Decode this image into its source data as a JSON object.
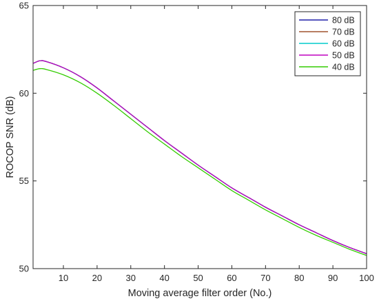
{
  "chart_data": {
    "type": "line",
    "xlabel": "Moving average filter order (No.)",
    "ylabel": "ROCOP SNR (dB)",
    "xlim": [
      1,
      100
    ],
    "ylim": [
      50,
      65
    ],
    "xticks": [
      10,
      20,
      30,
      40,
      50,
      60,
      70,
      80,
      90,
      100
    ],
    "yticks": [
      50,
      55,
      60,
      65
    ],
    "x": [
      1,
      3,
      5,
      10,
      15,
      20,
      25,
      30,
      35,
      40,
      45,
      50,
      55,
      60,
      65,
      70,
      75,
      80,
      85,
      90,
      95,
      100
    ],
    "series": [
      {
        "name": "80 dB",
        "color": "#1f1fa8",
        "values": [
          61.7,
          61.85,
          61.8,
          61.45,
          60.95,
          60.3,
          59.55,
          58.8,
          58.05,
          57.3,
          56.6,
          55.9,
          55.25,
          54.6,
          54.05,
          53.5,
          53.0,
          52.5,
          52.05,
          51.6,
          51.2,
          50.85
        ]
      },
      {
        "name": "70 dB",
        "color": "#a0522d",
        "values": [
          61.7,
          61.85,
          61.8,
          61.45,
          60.95,
          60.3,
          59.55,
          58.8,
          58.05,
          57.3,
          56.6,
          55.9,
          55.25,
          54.6,
          54.05,
          53.5,
          53.0,
          52.5,
          52.05,
          51.6,
          51.2,
          50.85
        ]
      },
      {
        "name": "60 dB",
        "color": "#00cccc",
        "values": [
          61.7,
          61.85,
          61.8,
          61.45,
          60.95,
          60.3,
          59.55,
          58.8,
          58.05,
          57.3,
          56.6,
          55.9,
          55.25,
          54.6,
          54.05,
          53.5,
          53.0,
          52.5,
          52.05,
          51.6,
          51.2,
          50.85
        ]
      },
      {
        "name": "50 dB",
        "color": "#bf00bf",
        "values": [
          61.7,
          61.85,
          61.8,
          61.45,
          60.95,
          60.3,
          59.55,
          58.8,
          58.05,
          57.3,
          56.6,
          55.9,
          55.25,
          54.6,
          54.05,
          53.5,
          53.0,
          52.5,
          52.05,
          51.6,
          51.2,
          50.85
        ]
      },
      {
        "name": "40 dB",
        "color": "#33cc00",
        "values": [
          61.3,
          61.4,
          61.35,
          61.05,
          60.6,
          60.0,
          59.3,
          58.55,
          57.8,
          57.1,
          56.4,
          55.75,
          55.1,
          54.45,
          53.9,
          53.35,
          52.85,
          52.35,
          51.9,
          51.5,
          51.1,
          50.75
        ]
      }
    ],
    "grid": false,
    "legend": "top-right"
  }
}
